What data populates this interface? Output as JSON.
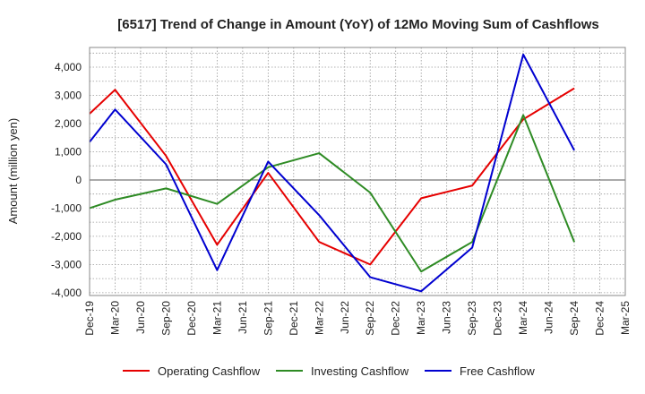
{
  "chart_data": {
    "type": "line",
    "title": "[6517]  Trend of Change in Amount (YoY) of 12Mo Moving Sum of Cashflows",
    "xlabel": "",
    "ylabel": "Amount (million yen)",
    "ylim": [
      -4100,
      4700
    ],
    "yticks": [
      4000,
      3000,
      2000,
      1000,
      0,
      -1000,
      -2000,
      -3000,
      -4000
    ],
    "ytick_labels": [
      "4,000",
      "3,000",
      "2,000",
      "1,000",
      "0",
      "-1,000",
      "-2,000",
      "-3,000",
      "-4,000"
    ],
    "categories": [
      "Dec-19",
      "Mar-20",
      "Jun-20",
      "Sep-20",
      "Dec-20",
      "Mar-21",
      "Jun-21",
      "Sep-21",
      "Dec-21",
      "Mar-22",
      "Jun-22",
      "Sep-22",
      "Dec-22",
      "Mar-23",
      "Jun-23",
      "Sep-23",
      "Dec-23",
      "Mar-24",
      "Jun-24",
      "Sep-24",
      "Dec-24",
      "Mar-25"
    ],
    "grid": true,
    "legend_position": "bottom",
    "series": [
      {
        "name": "Operating Cashflow",
        "color": "#e60000",
        "values": [
          2350,
          3200,
          null,
          850,
          null,
          -2300,
          null,
          250,
          null,
          -2200,
          null,
          -3000,
          null,
          -650,
          null,
          -200,
          null,
          2150,
          null,
          3250,
          null,
          null
        ]
      },
      {
        "name": "Investing Cashflow",
        "color": "#2e8b24",
        "values": [
          -1000,
          -700,
          null,
          -300,
          null,
          -850,
          null,
          450,
          null,
          950,
          null,
          -450,
          null,
          -3250,
          null,
          -2200,
          null,
          2300,
          null,
          -2200,
          null,
          null
        ]
      },
      {
        "name": "Free Cashflow",
        "color": "#0000d0",
        "values": [
          1350,
          2500,
          null,
          550,
          null,
          -3200,
          null,
          650,
          null,
          -1250,
          null,
          -3450,
          null,
          -3950,
          null,
          -2400,
          null,
          4450,
          null,
          1050,
          null,
          null
        ]
      }
    ]
  }
}
